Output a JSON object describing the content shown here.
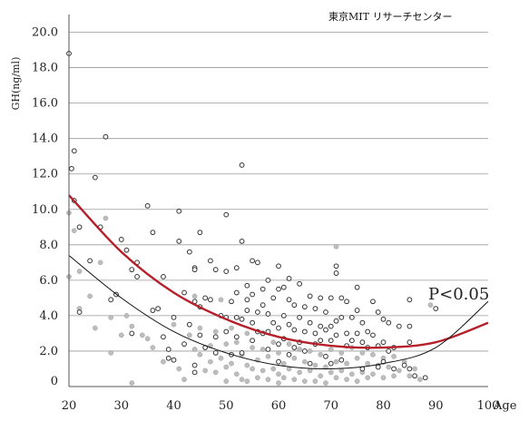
{
  "chart_data": {
    "type": "scatter",
    "source_label": "東京MIT リサーチセンター",
    "ylabel": "GH(ng/ml)",
    "xlabel": "Age",
    "annotation": "P<0.05",
    "xlim": [
      20,
      100
    ],
    "ylim": [
      0,
      21
    ],
    "y_ticks": [
      "0",
      "2.0",
      "4.0",
      "6.0",
      "8.0",
      "10.0",
      "12.0",
      "14.0",
      "16.0",
      "18.0",
      "20.0"
    ],
    "x_ticks": [
      "20",
      "30",
      "40",
      "50",
      "60",
      "70",
      "80",
      "90",
      "100"
    ],
    "grid": "horizontal",
    "colors": {
      "trend_red": "#b5202b",
      "trend_black": "#111111",
      "grid": "#9a9a9a",
      "filled_point": "#bdbdbd",
      "open_point_stroke": "#333333"
    },
    "series": [
      {
        "style": "open-circle",
        "points": [
          [
            20,
            18.8
          ],
          [
            20.5,
            12.3
          ],
          [
            21,
            13.3
          ],
          [
            21,
            10.5
          ],
          [
            22,
            9.0
          ],
          [
            22,
            4.2
          ],
          [
            24,
            7.1
          ],
          [
            25,
            11.8
          ],
          [
            26,
            9.0
          ],
          [
            27,
            14.1
          ],
          [
            28,
            4.9
          ],
          [
            29,
            5.2
          ],
          [
            30,
            8.3
          ],
          [
            31,
            7.7
          ],
          [
            32,
            6.6
          ],
          [
            32,
            3.0
          ],
          [
            33,
            7.0
          ],
          [
            33,
            6.2
          ],
          [
            35,
            10.2
          ],
          [
            36,
            8.7
          ],
          [
            36,
            4.3
          ],
          [
            37,
            4.4
          ],
          [
            38,
            6.2
          ],
          [
            38,
            2.8
          ],
          [
            39,
            2.1
          ],
          [
            39,
            1.6
          ],
          [
            40,
            3.9
          ],
          [
            40,
            1.5
          ],
          [
            41,
            9.9
          ],
          [
            41,
            8.2
          ],
          [
            42,
            5.3
          ],
          [
            42,
            2.4
          ],
          [
            43,
            7.6
          ],
          [
            43,
            3.5
          ],
          [
            44,
            6.7
          ],
          [
            44,
            6.6
          ],
          [
            44,
            4.8
          ],
          [
            44,
            1.2
          ],
          [
            44,
            0.8
          ],
          [
            45,
            8.7
          ],
          [
            45,
            4.5
          ],
          [
            45,
            2.9
          ],
          [
            46,
            5.0
          ],
          [
            46,
            2.2
          ],
          [
            47,
            7.1
          ],
          [
            47,
            4.9
          ],
          [
            48,
            6.6
          ],
          [
            48,
            2.8
          ],
          [
            48,
            1.9
          ],
          [
            49,
            4.0
          ],
          [
            50,
            9.7
          ],
          [
            50,
            6.5
          ],
          [
            50,
            3.9
          ],
          [
            50,
            3.1
          ],
          [
            51,
            4.8
          ],
          [
            51,
            1.8
          ],
          [
            52,
            6.7
          ],
          [
            52,
            5.3
          ],
          [
            52,
            3.9
          ],
          [
            52,
            2.8
          ],
          [
            53,
            12.5
          ],
          [
            53,
            8.2
          ],
          [
            53,
            3.8
          ],
          [
            53,
            1.9
          ],
          [
            54,
            5.7
          ],
          [
            54,
            4.9
          ],
          [
            54,
            4.3
          ],
          [
            55,
            7.1
          ],
          [
            55,
            5.2
          ],
          [
            55,
            3.6
          ],
          [
            55,
            2.6
          ],
          [
            56,
            7.0
          ],
          [
            56,
            4.2
          ],
          [
            56,
            3.1
          ],
          [
            57,
            5.5
          ],
          [
            57,
            4.6
          ],
          [
            57,
            3.0
          ],
          [
            58,
            6.0
          ],
          [
            58,
            4.1
          ],
          [
            58,
            3.1
          ],
          [
            58,
            2.1
          ],
          [
            59,
            5.0
          ],
          [
            59,
            3.6
          ],
          [
            60,
            6.8
          ],
          [
            60,
            5.5
          ],
          [
            60,
            3.3
          ],
          [
            60,
            2.4
          ],
          [
            60,
            1.4
          ],
          [
            61,
            5.6
          ],
          [
            61,
            4.0
          ],
          [
            61,
            2.7
          ],
          [
            62,
            6.1
          ],
          [
            62,
            4.9
          ],
          [
            62,
            3.5
          ],
          [
            62,
            1.8
          ],
          [
            63,
            4.6
          ],
          [
            63,
            3.2
          ],
          [
            63,
            2.2
          ],
          [
            64,
            5.8
          ],
          [
            64,
            3.9
          ],
          [
            64,
            2.5
          ],
          [
            65,
            4.5
          ],
          [
            65,
            3.1
          ],
          [
            65,
            2.0
          ],
          [
            66,
            5.1
          ],
          [
            66,
            3.6
          ],
          [
            66,
            1.3
          ],
          [
            67,
            4.4
          ],
          [
            67,
            3.0
          ],
          [
            67,
            2.4
          ],
          [
            68,
            5.0
          ],
          [
            68,
            3.4
          ],
          [
            68,
            2.6
          ],
          [
            69,
            4.2
          ],
          [
            69,
            3.2
          ],
          [
            69,
            1.7
          ],
          [
            70,
            5.0
          ],
          [
            70,
            3.4
          ],
          [
            70,
            2.6
          ],
          [
            70,
            1.3
          ],
          [
            71,
            6.8
          ],
          [
            71,
            6.4
          ],
          [
            71,
            3.7
          ],
          [
            71,
            2.9
          ],
          [
            72,
            5.0
          ],
          [
            72,
            3.9
          ],
          [
            72,
            1.5
          ],
          [
            73,
            4.8
          ],
          [
            73,
            3.0
          ],
          [
            73,
            2.3
          ],
          [
            74,
            3.9
          ],
          [
            74,
            2.6
          ],
          [
            75,
            5.6
          ],
          [
            75,
            4.3
          ],
          [
            75,
            3.0
          ],
          [
            76,
            3.6
          ],
          [
            76,
            2.5
          ],
          [
            76,
            1.0
          ],
          [
            77,
            3.1
          ],
          [
            77,
            2.2
          ],
          [
            78,
            4.8
          ],
          [
            78,
            2.9
          ],
          [
            79,
            4.2
          ],
          [
            79,
            2.3
          ],
          [
            79,
            1.1
          ],
          [
            80,
            3.8
          ],
          [
            80,
            2.5
          ],
          [
            80,
            1.4
          ],
          [
            81,
            3.6
          ],
          [
            81,
            2.0
          ],
          [
            82,
            2.2
          ],
          [
            82,
            1.0
          ],
          [
            83,
            3.4
          ],
          [
            84,
            1.2
          ],
          [
            85,
            4.9
          ],
          [
            85,
            3.4
          ],
          [
            85,
            2.5
          ],
          [
            85,
            1.0
          ],
          [
            86,
            0.6
          ],
          [
            88,
            0.5
          ],
          [
            90,
            4.4
          ]
        ]
      },
      {
        "style": "filled-circle",
        "points": [
          [
            20,
            9.8
          ],
          [
            20,
            6.2
          ],
          [
            21,
            8.8
          ],
          [
            22,
            6.5
          ],
          [
            22,
            4.4
          ],
          [
            24,
            5.1
          ],
          [
            25,
            3.3
          ],
          [
            26,
            7.0
          ],
          [
            27,
            9.5
          ],
          [
            28,
            3.9
          ],
          [
            28,
            1.9
          ],
          [
            30,
            2.9
          ],
          [
            31,
            4.0
          ],
          [
            32,
            3.4
          ],
          [
            32,
            0.2
          ],
          [
            34,
            2.9
          ],
          [
            35,
            2.7
          ],
          [
            36,
            2.2
          ],
          [
            38,
            1.4
          ],
          [
            40,
            3.5
          ],
          [
            41,
            1.0
          ],
          [
            42,
            0.4
          ],
          [
            43,
            2.9
          ],
          [
            44,
            5.1
          ],
          [
            44,
            2.1
          ],
          [
            45,
            3.3
          ],
          [
            45,
            1.8
          ],
          [
            46,
            0.9
          ],
          [
            47,
            2.3
          ],
          [
            47,
            1.4
          ],
          [
            48,
            3.1
          ],
          [
            48,
            0.8
          ],
          [
            49,
            4.9
          ],
          [
            49,
            1.6
          ],
          [
            50,
            2.4
          ],
          [
            50,
            1.1
          ],
          [
            50,
            0.3
          ],
          [
            51,
            3.3
          ],
          [
            51,
            1.3
          ],
          [
            52,
            2.5
          ],
          [
            52,
            0.7
          ],
          [
            53,
            1.8
          ],
          [
            53,
            0.4
          ],
          [
            54,
            3.0
          ],
          [
            54,
            1.2
          ],
          [
            54,
            0.3
          ],
          [
            55,
            2.2
          ],
          [
            55,
            1.0
          ],
          [
            56,
            1.5
          ],
          [
            56,
            0.5
          ],
          [
            57,
            2.1
          ],
          [
            57,
            0.9
          ],
          [
            58,
            1.7
          ],
          [
            58,
            0.4
          ],
          [
            59,
            2.5
          ],
          [
            59,
            1.0
          ],
          [
            60,
            1.9
          ],
          [
            60,
            0.7
          ],
          [
            60,
            0.2
          ],
          [
            61,
            1.3
          ],
          [
            61,
            0.5
          ],
          [
            62,
            2.4
          ],
          [
            62,
            1.0
          ],
          [
            63,
            1.6
          ],
          [
            63,
            0.4
          ],
          [
            64,
            2.1
          ],
          [
            64,
            0.8
          ],
          [
            65,
            1.4
          ],
          [
            65,
            0.3
          ],
          [
            66,
            2.0
          ],
          [
            66,
            0.9
          ],
          [
            67,
            1.2
          ],
          [
            67,
            0.3
          ],
          [
            68,
            1.8
          ],
          [
            68,
            0.6
          ],
          [
            69,
            1.1
          ],
          [
            69,
            0.2
          ],
          [
            70,
            2.1
          ],
          [
            70,
            0.8
          ],
          [
            71,
            7.9
          ],
          [
            71,
            1.4
          ],
          [
            71,
            0.5
          ],
          [
            72,
            1.9
          ],
          [
            72,
            0.9
          ],
          [
            73,
            1.3
          ],
          [
            73,
            0.4
          ],
          [
            74,
            2.2
          ],
          [
            74,
            0.7
          ],
          [
            75,
            1.6
          ],
          [
            75,
            0.3
          ],
          [
            76,
            1.9
          ],
          [
            76,
            0.8
          ],
          [
            77,
            1.3
          ],
          [
            77,
            0.5
          ],
          [
            78,
            1.8
          ],
          [
            78,
            0.7
          ],
          [
            79,
            1.2
          ],
          [
            80,
            1.6
          ],
          [
            80,
            0.5
          ],
          [
            81,
            1.1
          ],
          [
            82,
            1.7
          ],
          [
            82,
            0.6
          ],
          [
            83,
            0.9
          ],
          [
            84,
            1.4
          ],
          [
            85,
            0.6
          ],
          [
            86,
            1.0
          ],
          [
            87,
            0.4
          ],
          [
            89,
            4.6
          ]
        ]
      }
    ],
    "trend_lines": [
      {
        "color": "#b5202b",
        "points": [
          [
            20,
            10.8
          ],
          [
            30,
            7.6
          ],
          [
            40,
            5.3
          ],
          [
            50,
            3.8
          ],
          [
            60,
            2.8
          ],
          [
            70,
            2.3
          ],
          [
            80,
            2.2
          ],
          [
            90,
            2.5
          ],
          [
            100,
            3.6
          ]
        ]
      },
      {
        "color": "#111111",
        "points": [
          [
            20,
            7.4
          ],
          [
            30,
            5.0
          ],
          [
            40,
            3.1
          ],
          [
            50,
            1.9
          ],
          [
            60,
            1.2
          ],
          [
            70,
            1.0
          ],
          [
            80,
            1.3
          ],
          [
            90,
            2.2
          ],
          [
            100,
            4.8
          ]
        ]
      }
    ]
  }
}
